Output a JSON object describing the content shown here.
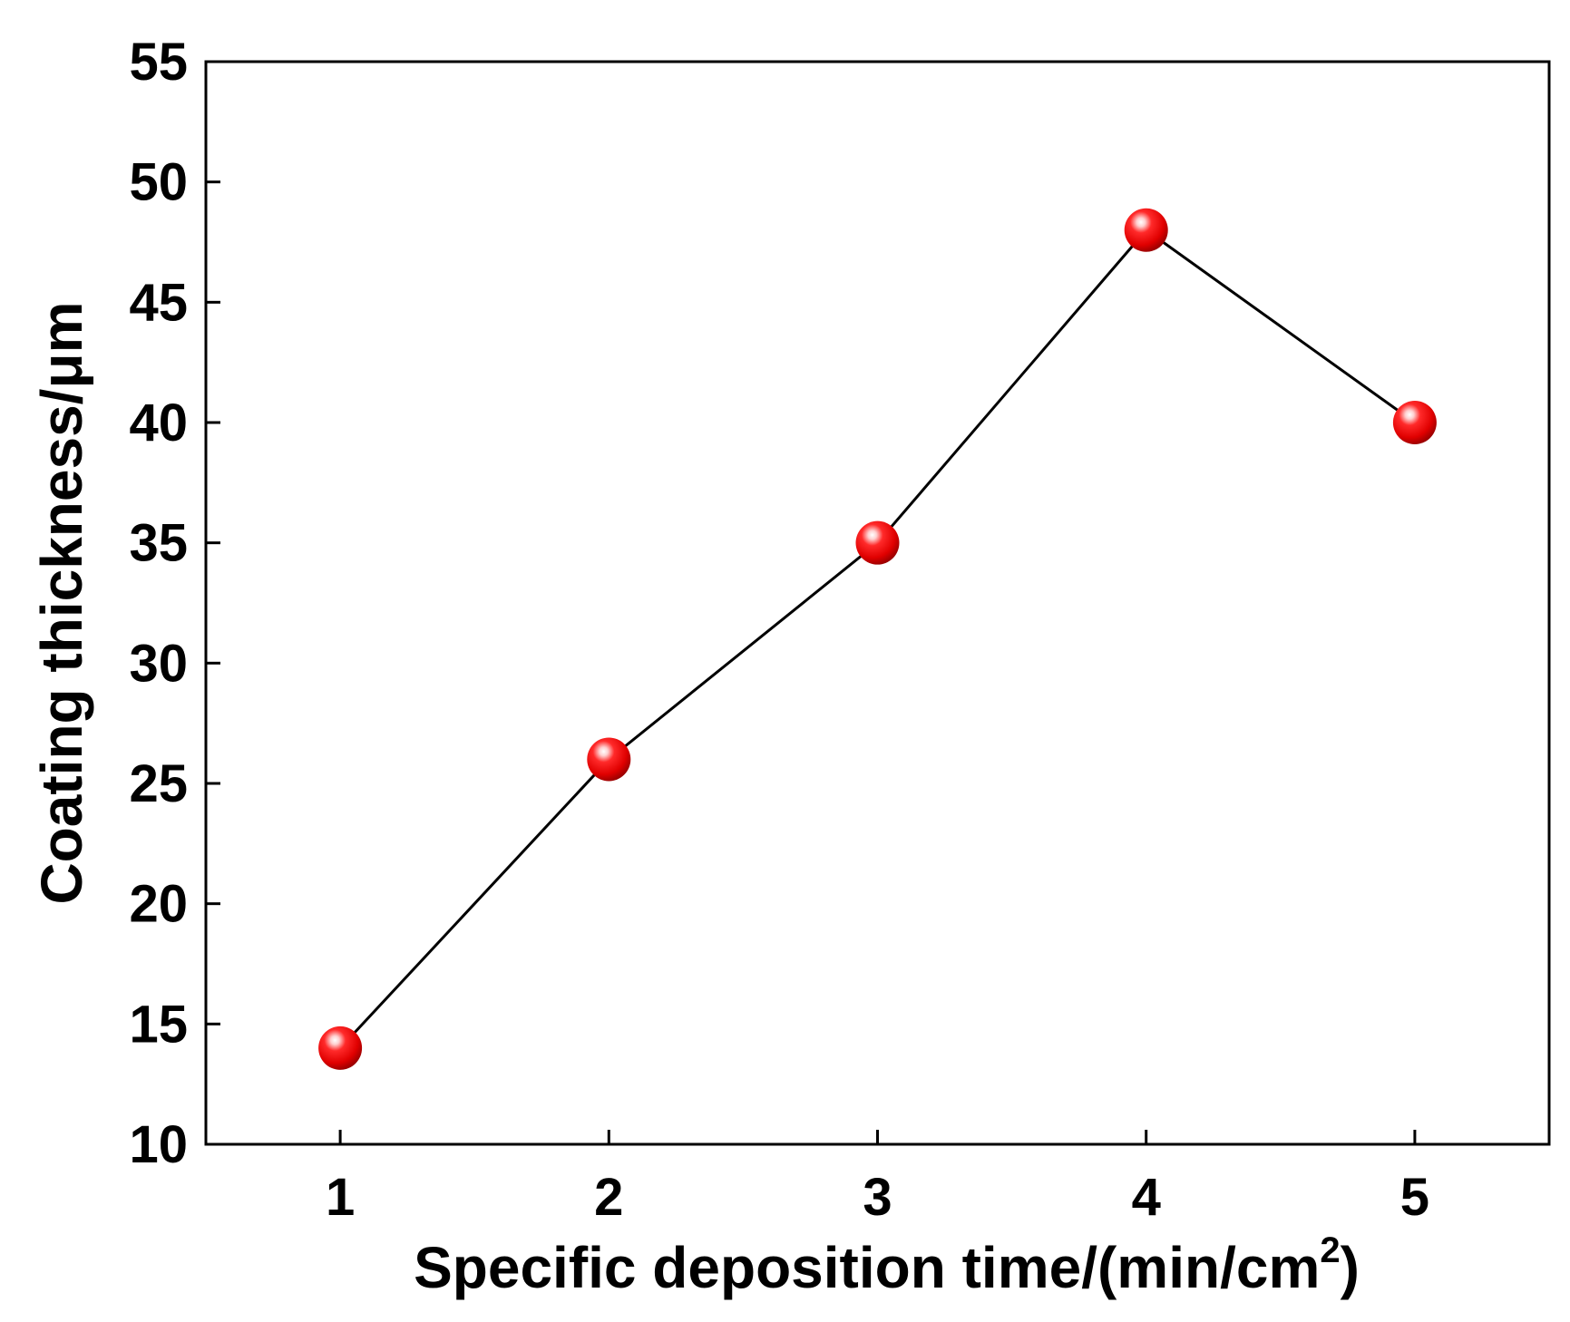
{
  "chart_data": {
    "type": "line",
    "title": "",
    "xlabel": "Specific deposition time/(min/cm",
    "xlabel_sup": "2",
    "xlabel_end": ")",
    "ylabel": "Coating thickness/μm",
    "x": [
      1,
      2,
      3,
      4,
      5
    ],
    "series": [
      {
        "values": [
          14,
          26,
          35,
          48,
          40
        ]
      }
    ],
    "xlim": [
      0.5,
      5.5
    ],
    "ylim": [
      10,
      55
    ],
    "xticks": [
      "1",
      "2",
      "3",
      "4",
      "5"
    ],
    "yticks": [
      "10",
      "15",
      "20",
      "25",
      "30",
      "35",
      "40",
      "45",
      "50",
      "55"
    ],
    "grid": false,
    "legend": "none",
    "line_color": "#000000",
    "marker_color": "#ee1111",
    "marker_style": "red-sphere"
  }
}
